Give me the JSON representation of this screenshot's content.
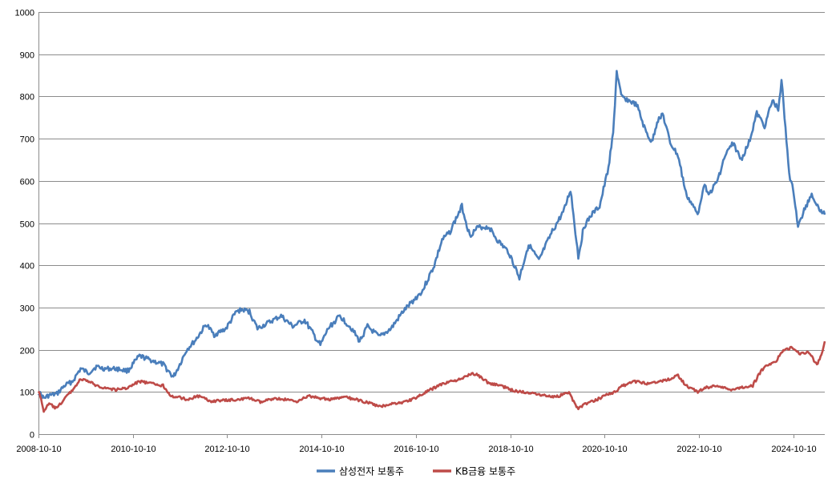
{
  "chart_data": {
    "type": "line",
    "title": "",
    "xlabel": "",
    "ylabel": "",
    "ylim": [
      0,
      1000
    ],
    "yticks": [
      0,
      100,
      200,
      300,
      400,
      500,
      600,
      700,
      800,
      900,
      1000
    ],
    "xlim": [
      "2008-10-10",
      "2025-06-10"
    ],
    "xticks": [
      "2008-10-10",
      "2010-10-10",
      "2012-10-10",
      "2014-10-10",
      "2016-10-10",
      "2018-10-10",
      "2020-10-10",
      "2022-10-10",
      "2024-10-10"
    ],
    "grid": "horizontal",
    "legend_position": "bottom",
    "series": [
      {
        "name": "삼성전자 보통주",
        "color": "#4a7ebb",
        "points": [
          [
            "2008-10-10",
            100
          ],
          [
            "2008-11-20",
            85
          ],
          [
            "2009-01-01",
            92
          ],
          [
            "2009-03-01",
            95
          ],
          [
            "2009-05-01",
            115
          ],
          [
            "2009-07-01",
            125
          ],
          [
            "2009-09-01",
            155
          ],
          [
            "2009-11-01",
            145
          ],
          [
            "2010-01-01",
            160
          ],
          [
            "2010-03-01",
            155
          ],
          [
            "2010-06-01",
            155
          ],
          [
            "2010-09-01",
            150
          ],
          [
            "2010-12-01",
            185
          ],
          [
            "2011-03-01",
            175
          ],
          [
            "2011-06-01",
            165
          ],
          [
            "2011-08-20",
            135
          ],
          [
            "2011-10-01",
            160
          ],
          [
            "2011-12-01",
            200
          ],
          [
            "2012-02-01",
            220
          ],
          [
            "2012-05-01",
            260
          ],
          [
            "2012-07-01",
            235
          ],
          [
            "2012-10-01",
            250
          ],
          [
            "2012-12-20",
            290
          ],
          [
            "2013-02-01",
            295
          ],
          [
            "2013-04-01",
            290
          ],
          [
            "2013-06-01",
            250
          ],
          [
            "2013-09-01",
            265
          ],
          [
            "2013-12-01",
            280
          ],
          [
            "2014-03-01",
            255
          ],
          [
            "2014-06-01",
            270
          ],
          [
            "2014-10-01",
            210
          ],
          [
            "2014-12-01",
            250
          ],
          [
            "2015-03-01",
            280
          ],
          [
            "2015-06-01",
            250
          ],
          [
            "2015-08-01",
            220
          ],
          [
            "2015-10-01",
            255
          ],
          [
            "2016-01-01",
            230
          ],
          [
            "2016-04-01",
            250
          ],
          [
            "2016-07-01",
            290
          ],
          [
            "2016-10-01",
            320
          ],
          [
            "2016-12-01",
            340
          ],
          [
            "2017-03-01",
            400
          ],
          [
            "2017-05-01",
            460
          ],
          [
            "2017-07-01",
            480
          ],
          [
            "2017-10-01",
            540
          ],
          [
            "2017-12-01",
            470
          ],
          [
            "2018-02-01",
            490
          ],
          [
            "2018-05-01",
            490
          ],
          [
            "2018-07-01",
            460
          ],
          [
            "2018-10-01",
            430
          ],
          [
            "2018-12-20",
            370
          ],
          [
            "2019-03-01",
            450
          ],
          [
            "2019-05-20",
            410
          ],
          [
            "2019-07-01",
            440
          ],
          [
            "2019-09-01",
            480
          ],
          [
            "2019-12-01",
            530
          ],
          [
            "2020-01-20",
            580
          ],
          [
            "2020-03-20",
            420
          ],
          [
            "2020-05-01",
            490
          ],
          [
            "2020-07-01",
            520
          ],
          [
            "2020-09-01",
            540
          ],
          [
            "2020-11-01",
            620
          ],
          [
            "2020-12-15",
            710
          ],
          [
            "2021-01-11",
            860
          ],
          [
            "2021-02-15",
            800
          ],
          [
            "2021-04-15",
            790
          ],
          [
            "2021-06-15",
            780
          ],
          [
            "2021-08-20",
            720
          ],
          [
            "2021-10-10",
            690
          ],
          [
            "2021-11-20",
            740
          ],
          [
            "2022-01-01",
            760
          ],
          [
            "2022-03-01",
            690
          ],
          [
            "2022-05-01",
            660
          ],
          [
            "2022-07-01",
            570
          ],
          [
            "2022-09-30",
            520
          ],
          [
            "2022-11-15",
            590
          ],
          [
            "2023-01-01",
            570
          ],
          [
            "2023-03-01",
            600
          ],
          [
            "2023-05-01",
            660
          ],
          [
            "2023-07-01",
            690
          ],
          [
            "2023-09-01",
            650
          ],
          [
            "2023-11-01",
            690
          ],
          [
            "2024-01-01",
            760
          ],
          [
            "2024-03-01",
            730
          ],
          [
            "2024-05-01",
            790
          ],
          [
            "2024-06-15",
            770
          ],
          [
            "2024-07-10",
            840
          ],
          [
            "2024-08-10",
            720
          ],
          [
            "2024-09-15",
            600
          ],
          [
            "2024-10-10",
            580
          ],
          [
            "2024-11-15",
            490
          ],
          [
            "2025-01-01",
            530
          ],
          [
            "2025-03-01",
            570
          ],
          [
            "2025-04-15",
            540
          ],
          [
            "2025-06-10",
            520
          ]
        ]
      },
      {
        "name": "KB금융 보통주",
        "color": "#be4b48",
        "points": [
          [
            "2008-10-10",
            105
          ],
          [
            "2008-11-20",
            55
          ],
          [
            "2009-01-01",
            72
          ],
          [
            "2009-03-01",
            60
          ],
          [
            "2009-05-01",
            85
          ],
          [
            "2009-07-01",
            105
          ],
          [
            "2009-09-01",
            130
          ],
          [
            "2009-11-01",
            125
          ],
          [
            "2010-01-01",
            115
          ],
          [
            "2010-03-01",
            110
          ],
          [
            "2010-06-01",
            105
          ],
          [
            "2010-09-01",
            110
          ],
          [
            "2010-12-01",
            125
          ],
          [
            "2011-03-01",
            120
          ],
          [
            "2011-06-01",
            115
          ],
          [
            "2011-08-20",
            85
          ],
          [
            "2011-10-01",
            88
          ],
          [
            "2011-12-01",
            82
          ],
          [
            "2012-03-01",
            90
          ],
          [
            "2012-06-01",
            78
          ],
          [
            "2012-10-01",
            80
          ],
          [
            "2013-01-01",
            82
          ],
          [
            "2013-04-01",
            85
          ],
          [
            "2013-07-01",
            75
          ],
          [
            "2013-10-01",
            85
          ],
          [
            "2014-01-01",
            82
          ],
          [
            "2014-04-01",
            78
          ],
          [
            "2014-07-01",
            90
          ],
          [
            "2014-10-01",
            85
          ],
          [
            "2015-01-01",
            82
          ],
          [
            "2015-04-01",
            88
          ],
          [
            "2015-07-01",
            82
          ],
          [
            "2015-10-01",
            75
          ],
          [
            "2016-01-01",
            65
          ],
          [
            "2016-04-01",
            72
          ],
          [
            "2016-07-01",
            75
          ],
          [
            "2016-10-01",
            85
          ],
          [
            "2017-01-01",
            100
          ],
          [
            "2017-04-01",
            115
          ],
          [
            "2017-07-01",
            125
          ],
          [
            "2017-10-01",
            130
          ],
          [
            "2017-12-15",
            145
          ],
          [
            "2018-02-01",
            140
          ],
          [
            "2018-05-01",
            120
          ],
          [
            "2018-08-01",
            115
          ],
          [
            "2018-10-15",
            105
          ],
          [
            "2019-01-01",
            100
          ],
          [
            "2019-04-01",
            98
          ],
          [
            "2019-07-01",
            92
          ],
          [
            "2019-10-01",
            88
          ],
          [
            "2020-01-01",
            100
          ],
          [
            "2020-03-20",
            60
          ],
          [
            "2020-05-01",
            70
          ],
          [
            "2020-08-01",
            80
          ],
          [
            "2020-11-01",
            95
          ],
          [
            "2021-01-01",
            100
          ],
          [
            "2021-03-01",
            115
          ],
          [
            "2021-06-01",
            125
          ],
          [
            "2021-09-01",
            120
          ],
          [
            "2021-12-01",
            125
          ],
          [
            "2022-03-01",
            130
          ],
          [
            "2022-05-01",
            140
          ],
          [
            "2022-07-01",
            115
          ],
          [
            "2022-10-01",
            100
          ],
          [
            "2022-12-01",
            110
          ],
          [
            "2023-03-01",
            115
          ],
          [
            "2023-06-01",
            105
          ],
          [
            "2023-09-01",
            110
          ],
          [
            "2023-12-01",
            115
          ],
          [
            "2024-02-01",
            150
          ],
          [
            "2024-04-01",
            165
          ],
          [
            "2024-06-01",
            175
          ],
          [
            "2024-08-01",
            200
          ],
          [
            "2024-10-01",
            205
          ],
          [
            "2024-12-01",
            190
          ],
          [
            "2025-02-01",
            195
          ],
          [
            "2025-04-10",
            165
          ],
          [
            "2025-05-15",
            185
          ],
          [
            "2025-06-10",
            220
          ]
        ]
      }
    ]
  }
}
